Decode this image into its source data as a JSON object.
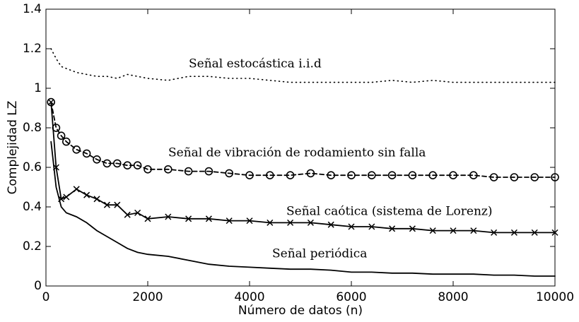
{
  "chart_data": {
    "type": "line",
    "xlabel": "Número de datos (n)",
    "ylabel": "Complejidad LZ",
    "x": [
      100,
      200,
      300,
      400,
      600,
      800,
      1000,
      1200,
      1400,
      1600,
      1800,
      2000,
      2400,
      2800,
      3200,
      3600,
      4000,
      4400,
      4800,
      5200,
      5600,
      6000,
      6400,
      6800,
      7200,
      7600,
      8000,
      8400,
      8800,
      9200,
      9600,
      10000
    ],
    "series": [
      {
        "name": "Señal estocástica i.i.d",
        "color": "#000000",
        "line_style": "dotted",
        "marker": "none",
        "values": [
          1.2,
          1.15,
          1.11,
          1.1,
          1.08,
          1.07,
          1.06,
          1.06,
          1.05,
          1.07,
          1.06,
          1.05,
          1.04,
          1.06,
          1.06,
          1.05,
          1.05,
          1.04,
          1.03,
          1.03,
          1.03,
          1.03,
          1.03,
          1.04,
          1.03,
          1.04,
          1.03,
          1.03,
          1.03,
          1.03,
          1.03,
          1.03
        ]
      },
      {
        "name": "Señal de vibración de rodamiento sin falla",
        "color": "#000000",
        "line_style": "dashed",
        "marker": "circle",
        "values": [
          0.93,
          0.8,
          0.76,
          0.73,
          0.69,
          0.67,
          0.64,
          0.62,
          0.62,
          0.61,
          0.61,
          0.59,
          0.59,
          0.58,
          0.58,
          0.57,
          0.56,
          0.56,
          0.56,
          0.57,
          0.56,
          0.56,
          0.56,
          0.56,
          0.56,
          0.56,
          0.56,
          0.56,
          0.55,
          0.55,
          0.55,
          0.55
        ]
      },
      {
        "name": "Señal caótica (sistema de Lorenz)",
        "color": "#000000",
        "line_style": "solid",
        "marker": "x",
        "values": [
          0.93,
          0.6,
          0.44,
          0.45,
          0.49,
          0.46,
          0.44,
          0.41,
          0.41,
          0.36,
          0.37,
          0.34,
          0.35,
          0.34,
          0.34,
          0.33,
          0.33,
          0.32,
          0.32,
          0.32,
          0.31,
          0.3,
          0.3,
          0.29,
          0.29,
          0.28,
          0.28,
          0.28,
          0.27,
          0.27,
          0.27,
          0.27
        ]
      },
      {
        "name": "Señal periódica",
        "color": "#000000",
        "line_style": "solid",
        "marker": "none",
        "values": [
          0.73,
          0.5,
          0.4,
          0.37,
          0.35,
          0.32,
          0.28,
          0.25,
          0.22,
          0.19,
          0.17,
          0.16,
          0.15,
          0.13,
          0.11,
          0.1,
          0.095,
          0.09,
          0.085,
          0.085,
          0.08,
          0.07,
          0.07,
          0.065,
          0.065,
          0.06,
          0.06,
          0.06,
          0.055,
          0.055,
          0.05,
          0.05
        ]
      }
    ],
    "xlim": [
      0,
      10000
    ],
    "xticks": [
      0,
      2000,
      4000,
      6000,
      8000,
      10000
    ],
    "ylim": [
      0,
      1.4
    ],
    "yticks": [
      0,
      0.2,
      0.4,
      0.6,
      0.8,
      1,
      1.2,
      1.4
    ],
    "grid": false
  }
}
